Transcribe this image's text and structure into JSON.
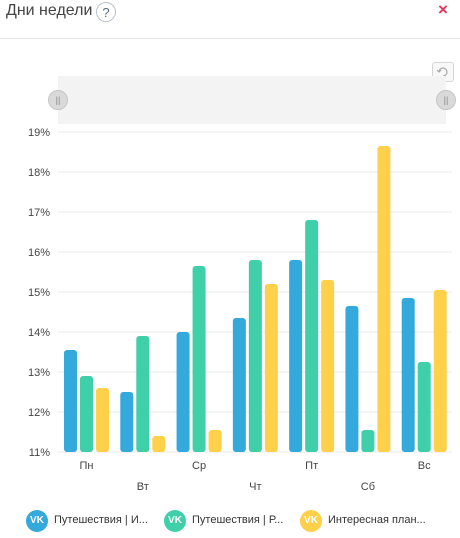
{
  "header": {
    "title": "Дни недели",
    "help": "?",
    "close": "×"
  },
  "colors": {
    "blue": "#33a9dc",
    "green": "#3fcfa9",
    "yellow": "#ffd049"
  },
  "chart_data": {
    "type": "bar",
    "categories": [
      "Пн",
      "Вт",
      "Ср",
      "Чт",
      "Пт",
      "Сб",
      "Вс"
    ],
    "series": [
      {
        "name": "Путешествия | И...",
        "color": "#33a9dc",
        "values": [
          13.55,
          12.5,
          14.0,
          14.35,
          15.8,
          14.65,
          14.85
        ]
      },
      {
        "name": "Путешествия | Р...",
        "color": "#3fcfa9",
        "values": [
          12.9,
          13.9,
          15.65,
          15.8,
          16.8,
          11.55,
          13.25
        ]
      },
      {
        "name": "Интересная план...",
        "color": "#ffd049",
        "values": [
          12.6,
          11.4,
          11.55,
          15.2,
          15.3,
          18.65,
          15.05
        ]
      }
    ],
    "ylim": [
      11,
      19
    ],
    "yticks": [
      "11%",
      "12%",
      "13%",
      "14%",
      "15%",
      "16%",
      "17%",
      "18%",
      "19%"
    ],
    "legend_position": "bottom"
  }
}
